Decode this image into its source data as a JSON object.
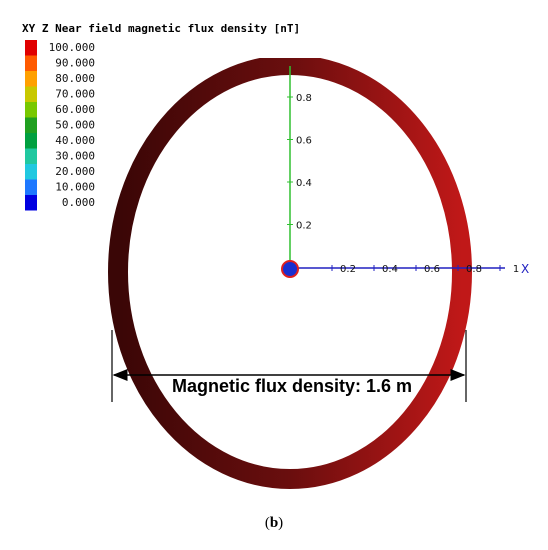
{
  "legend": {
    "title": "XY Z Near field magnetic flux density [nT]",
    "levels": [
      {
        "label": "100.000",
        "color": "#e00000"
      },
      {
        "label": "90.000",
        "color": "#ff5a00"
      },
      {
        "label": "80.000",
        "color": "#ffa000"
      },
      {
        "label": "70.000",
        "color": "#c8c800"
      },
      {
        "label": "60.000",
        "color": "#78c800"
      },
      {
        "label": "50.000",
        "color": "#20a020"
      },
      {
        "label": "40.000",
        "color": "#00a040"
      },
      {
        "label": "30.000",
        "color": "#20c8a0"
      },
      {
        "label": "20.000",
        "color": "#20c8e0"
      },
      {
        "label": "10.000",
        "color": "#1e78ff"
      },
      {
        "label": "0.000",
        "color": "#0000e0"
      }
    ]
  },
  "axes": {
    "y_ticks": [
      "0.8",
      "0.6",
      "0.4",
      "0.2"
    ],
    "x_ticks": [
      "0.2",
      "0.4",
      "0.6",
      "0.8",
      "1"
    ],
    "x_name": "X"
  },
  "annotation": "Magnetic flux density: 1.6 m",
  "caption": {
    "open": "(",
    "letter": "b",
    "close": ")"
  }
}
